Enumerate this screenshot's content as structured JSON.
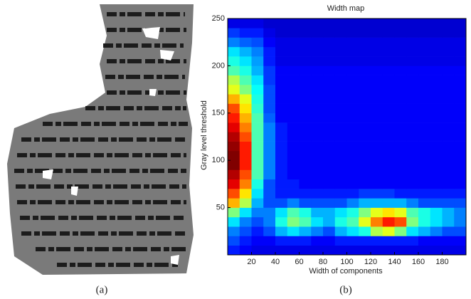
{
  "captions": [
    "(a)",
    "(b)"
  ],
  "chart_data": {
    "type": "heatmap",
    "title": "Width map",
    "xlabel": "Width of components",
    "ylabel": "Gray level threshold",
    "colormap": "jet",
    "x": [
      5,
      15,
      25,
      35,
      45,
      55,
      65,
      75,
      85,
      95,
      105,
      115,
      125,
      135,
      145,
      155,
      165,
      175,
      185,
      195
    ],
    "y": [
      5,
      15,
      25,
      35,
      45,
      55,
      65,
      75,
      85,
      95,
      105,
      115,
      125,
      135,
      145,
      155,
      165,
      175,
      185,
      195,
      205,
      215,
      225,
      235,
      245
    ],
    "z": [
      [
        0.15,
        0.12,
        0.1,
        0.1,
        0.1,
        0.1,
        0.1,
        0.1,
        0.1,
        0.1,
        0.1,
        0.1,
        0.1,
        0.1,
        0.1,
        0.1,
        0.1,
        0.1,
        0.1,
        0.1
      ],
      [
        0.2,
        0.15,
        0.12,
        0.12,
        0.15,
        0.15,
        0.15,
        0.12,
        0.12,
        0.15,
        0.15,
        0.15,
        0.15,
        0.15,
        0.15,
        0.15,
        0.12,
        0.12,
        0.12,
        0.12
      ],
      [
        0.25,
        0.2,
        0.15,
        0.2,
        0.3,
        0.35,
        0.3,
        0.25,
        0.2,
        0.3,
        0.35,
        0.4,
        0.55,
        0.6,
        0.5,
        0.35,
        0.3,
        0.25,
        0.2,
        0.2
      ],
      [
        0.35,
        0.25,
        0.2,
        0.25,
        0.4,
        0.5,
        0.45,
        0.35,
        0.3,
        0.4,
        0.45,
        0.6,
        0.75,
        0.85,
        0.8,
        0.5,
        0.4,
        0.35,
        0.3,
        0.25
      ],
      [
        0.5,
        0.35,
        0.25,
        0.25,
        0.35,
        0.45,
        0.4,
        0.3,
        0.3,
        0.35,
        0.4,
        0.5,
        0.6,
        0.65,
        0.6,
        0.45,
        0.4,
        0.35,
        0.3,
        0.25
      ],
      [
        0.7,
        0.55,
        0.3,
        0.2,
        0.2,
        0.25,
        0.2,
        0.2,
        0.2,
        0.2,
        0.25,
        0.3,
        0.3,
        0.3,
        0.3,
        0.25,
        0.2,
        0.2,
        0.2,
        0.2
      ],
      [
        0.8,
        0.65,
        0.35,
        0.2,
        0.15,
        0.15,
        0.15,
        0.15,
        0.15,
        0.15,
        0.15,
        0.18,
        0.18,
        0.18,
        0.15,
        0.15,
        0.15,
        0.15,
        0.15,
        0.15
      ],
      [
        0.9,
        0.75,
        0.4,
        0.2,
        0.15,
        0.15,
        0.12,
        0.12,
        0.12,
        0.12,
        0.12,
        0.12,
        0.12,
        0.12,
        0.12,
        0.12,
        0.12,
        0.12,
        0.12,
        0.12
      ],
      [
        0.95,
        0.8,
        0.45,
        0.25,
        0.15,
        0.12,
        0.12,
        0.12,
        0.12,
        0.12,
        0.12,
        0.12,
        0.12,
        0.12,
        0.12,
        0.12,
        0.12,
        0.12,
        0.12,
        0.12
      ],
      [
        1.0,
        0.85,
        0.45,
        0.25,
        0.15,
        0.12,
        0.12,
        0.12,
        0.12,
        0.12,
        0.12,
        0.12,
        0.12,
        0.12,
        0.12,
        0.12,
        0.12,
        0.12,
        0.12,
        0.12
      ],
      [
        1.0,
        0.85,
        0.45,
        0.25,
        0.15,
        0.12,
        0.12,
        0.12,
        0.12,
        0.12,
        0.12,
        0.12,
        0.12,
        0.12,
        0.12,
        0.12,
        0.12,
        0.12,
        0.12,
        0.12
      ],
      [
        0.98,
        0.85,
        0.45,
        0.25,
        0.15,
        0.12,
        0.12,
        0.12,
        0.12,
        0.12,
        0.12,
        0.12,
        0.12,
        0.12,
        0.12,
        0.12,
        0.12,
        0.12,
        0.12,
        0.12
      ],
      [
        0.95,
        0.8,
        0.45,
        0.25,
        0.15,
        0.12,
        0.12,
        0.12,
        0.12,
        0.12,
        0.12,
        0.12,
        0.12,
        0.12,
        0.12,
        0.12,
        0.12,
        0.12,
        0.12,
        0.12
      ],
      [
        0.9,
        0.75,
        0.45,
        0.25,
        0.15,
        0.12,
        0.12,
        0.12,
        0.12,
        0.12,
        0.12,
        0.12,
        0.12,
        0.12,
        0.12,
        0.12,
        0.12,
        0.12,
        0.12,
        0.12
      ],
      [
        0.85,
        0.7,
        0.45,
        0.22,
        0.12,
        0.12,
        0.12,
        0.12,
        0.12,
        0.12,
        0.12,
        0.12,
        0.12,
        0.12,
        0.12,
        0.12,
        0.12,
        0.12,
        0.12,
        0.12
      ],
      [
        0.8,
        0.65,
        0.42,
        0.2,
        0.12,
        0.12,
        0.12,
        0.12,
        0.12,
        0.12,
        0.12,
        0.12,
        0.12,
        0.12,
        0.12,
        0.12,
        0.12,
        0.12,
        0.12,
        0.12
      ],
      [
        0.7,
        0.6,
        0.4,
        0.2,
        0.12,
        0.12,
        0.12,
        0.12,
        0.12,
        0.12,
        0.12,
        0.12,
        0.12,
        0.12,
        0.12,
        0.12,
        0.12,
        0.12,
        0.12,
        0.12
      ],
      [
        0.6,
        0.5,
        0.38,
        0.2,
        0.12,
        0.12,
        0.12,
        0.12,
        0.12,
        0.12,
        0.12,
        0.12,
        0.12,
        0.12,
        0.12,
        0.12,
        0.12,
        0.12,
        0.12,
        0.12
      ],
      [
        0.55,
        0.45,
        0.35,
        0.18,
        0.12,
        0.12,
        0.12,
        0.12,
        0.12,
        0.12,
        0.12,
        0.12,
        0.12,
        0.12,
        0.12,
        0.12,
        0.12,
        0.12,
        0.12,
        0.12
      ],
      [
        0.45,
        0.4,
        0.3,
        0.18,
        0.12,
        0.12,
        0.12,
        0.12,
        0.12,
        0.12,
        0.12,
        0.12,
        0.12,
        0.12,
        0.12,
        0.12,
        0.12,
        0.12,
        0.12,
        0.12
      ],
      [
        0.4,
        0.35,
        0.28,
        0.15,
        0.1,
        0.1,
        0.1,
        0.1,
        0.1,
        0.1,
        0.1,
        0.1,
        0.1,
        0.1,
        0.1,
        0.1,
        0.1,
        0.1,
        0.1,
        0.1
      ],
      [
        0.35,
        0.3,
        0.25,
        0.15,
        0.1,
        0.1,
        0.1,
        0.1,
        0.1,
        0.1,
        0.1,
        0.1,
        0.1,
        0.1,
        0.1,
        0.1,
        0.1,
        0.1,
        0.1,
        0.1
      ],
      [
        0.25,
        0.22,
        0.2,
        0.12,
        0.1,
        0.1,
        0.1,
        0.1,
        0.1,
        0.1,
        0.1,
        0.1,
        0.1,
        0.1,
        0.1,
        0.1,
        0.1,
        0.1,
        0.1,
        0.1
      ],
      [
        0.18,
        0.15,
        0.15,
        0.1,
        0.08,
        0.08,
        0.08,
        0.08,
        0.08,
        0.08,
        0.08,
        0.08,
        0.08,
        0.08,
        0.08,
        0.08,
        0.08,
        0.08,
        0.08,
        0.08
      ],
      [
        0.1,
        0.1,
        0.1,
        0.08,
        0.08,
        0.08,
        0.08,
        0.08,
        0.08,
        0.08,
        0.08,
        0.08,
        0.08,
        0.08,
        0.08,
        0.08,
        0.08,
        0.08,
        0.08,
        0.08
      ]
    ],
    "xlim": [
      0,
      200
    ],
    "ylim": [
      0,
      250
    ],
    "xticks": [
      20,
      40,
      60,
      80,
      100,
      120,
      140,
      160,
      180
    ],
    "yticks": [
      50,
      100,
      150,
      200,
      250
    ]
  }
}
